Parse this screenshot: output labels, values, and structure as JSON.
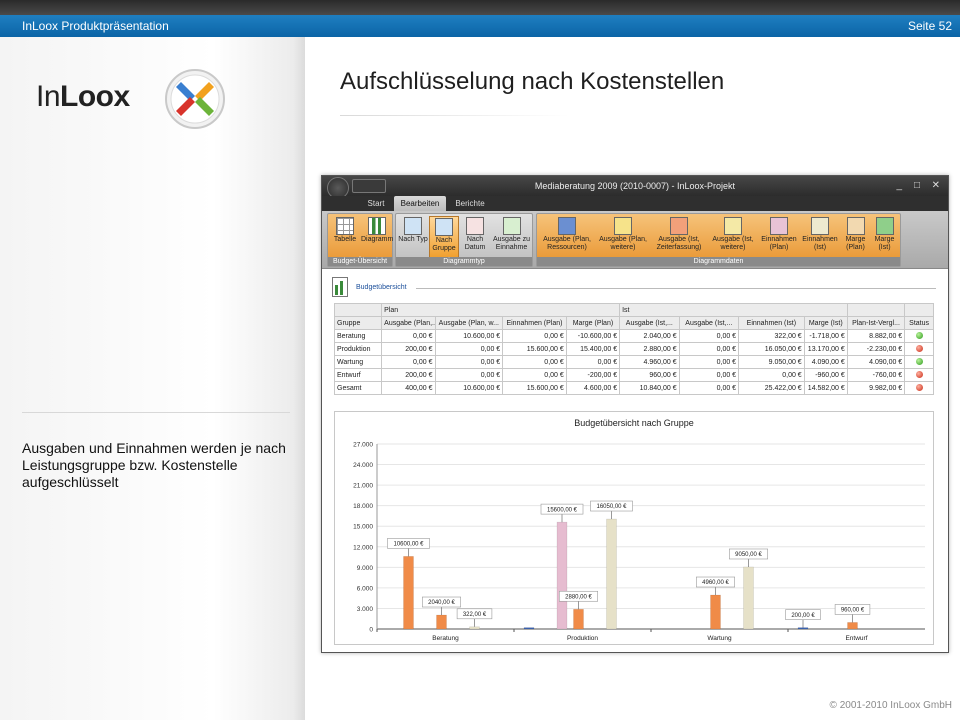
{
  "header": {
    "left": "InLoox Produktpräsentation",
    "right": "Seite 52"
  },
  "logo": {
    "text_light": "In",
    "text_bold": "Loox"
  },
  "slide_title": "Aufschlüsselung nach Kostenstellen",
  "description": "Ausgaben und Einnahmen werden je nach Leistungsgruppe bzw. Kostenstelle aufgeschlüsselt",
  "footer": "© 2001-2010 InLoox GmbH",
  "window": {
    "title": "Mediaberatung 2009 (2010-0007) - InLoox-Projekt",
    "controls": [
      "_",
      "□",
      "✕"
    ],
    "tabs": [
      "Start",
      "Bearbeiten",
      "Berichte"
    ],
    "active_tab": "Bearbeiten",
    "ribbon_groups": [
      {
        "label": "Budget-Übersicht",
        "buttons": [
          "Tabelle",
          "Diagramm"
        ]
      },
      {
        "label": "Diagrammtyp",
        "buttons": [
          "Nach Typ",
          "Nach Gruppe",
          "Nach Datum",
          "Ausgabe zu Einnahme"
        ]
      },
      {
        "label": "Diagrammdaten",
        "buttons": [
          "Ausgabe (Plan, Ressourcen)",
          "Ausgabe (Plan, weitere)",
          "Ausgabe (Ist, Zeiterfassung)",
          "Ausgabe (Ist, weitere)",
          "Einnahmen (Plan)",
          "Einnahmen (Ist)",
          "Marge (Plan)",
          "Marge (Ist)"
        ]
      }
    ],
    "selected_button": "Nach Gruppe",
    "section_title": "Budgetübersicht"
  },
  "table": {
    "group_headers": {
      "plan": "Plan",
      "ist": "Ist"
    },
    "columns": [
      "Gruppe",
      "Ausgabe (Plan,...",
      "Ausgabe (Plan, w...",
      "Einnahmen (Plan)",
      "Marge (Plan)",
      "Ausgabe (Ist,...",
      "Ausgabe (Ist,...",
      "Einnahmen (Ist)",
      "Marge (Ist)",
      "Plan-Ist-Vergl...",
      "Status"
    ],
    "rows": [
      {
        "cells": [
          "Beratung",
          "0,00 €",
          "10.600,00 €",
          "0,00 €",
          "-10.600,00 €",
          "2.040,00 €",
          "0,00 €",
          "322,00 €",
          "-1.718,00 €",
          "8.882,00 €"
        ],
        "status": "green"
      },
      {
        "cells": [
          "Produktion",
          "200,00 €",
          "0,00 €",
          "15.600,00 €",
          "15.400,00 €",
          "2.880,00 €",
          "0,00 €",
          "16.050,00 €",
          "13.170,00 €",
          "-2.230,00 €"
        ],
        "status": "red"
      },
      {
        "cells": [
          "Wartung",
          "0,00 €",
          "0,00 €",
          "0,00 €",
          "0,00 €",
          "4.960,00 €",
          "0,00 €",
          "9.050,00 €",
          "4.090,00 €",
          "4.090,00 €"
        ],
        "status": "green"
      },
      {
        "cells": [
          "Entwurf",
          "200,00 €",
          "0,00 €",
          "0,00 €",
          "-200,00 €",
          "960,00 €",
          "0,00 €",
          "0,00 €",
          "-960,00 €",
          "-760,00 €"
        ],
        "status": "red"
      },
      {
        "cells": [
          "Gesamt",
          "400,00 €",
          "10.600,00 €",
          "15.600,00 €",
          "4.600,00 €",
          "10.840,00 €",
          "0,00 €",
          "25.422,00 €",
          "14.582,00 €",
          "9.982,00 €"
        ],
        "status": "red"
      }
    ]
  },
  "chart_data": {
    "type": "bar",
    "title": "Budgetübersicht nach Gruppe",
    "categories": [
      "Beratung",
      "Produktion",
      "Wartung",
      "Entwurf"
    ],
    "ylim": [
      0,
      27000
    ],
    "yticks": [
      "0",
      "3.000",
      "6.000",
      "9.000",
      "12.000",
      "15.000",
      "18.000",
      "21.000",
      "24.000",
      "27.000"
    ],
    "ytick_values": [
      0,
      3000,
      6000,
      9000,
      12000,
      15000,
      18000,
      21000,
      24000,
      27000
    ],
    "series": [
      {
        "values": [
          0,
          200,
          0,
          200
        ],
        "color": "#3b64b4"
      },
      {
        "values": [
          10600,
          0,
          0,
          0
        ],
        "color": "#f08b48"
      },
      {
        "values": [
          0,
          15600,
          0,
          0
        ],
        "color": "#e6bcd0"
      },
      {
        "values": [
          2040,
          2880,
          4960,
          960
        ],
        "color": "#f08b48"
      },
      {
        "values": [
          0,
          0,
          0,
          0
        ],
        "color": "#f2cc7a"
      },
      {
        "values": [
          322,
          16050,
          9050,
          0
        ],
        "color": "#e6e1c8"
      }
    ],
    "data_labels": [
      {
        "category": "Beratung",
        "series": 1,
        "text": "10600,00 €"
      },
      {
        "category": "Beratung",
        "series": 3,
        "text": "2040,00 €"
      },
      {
        "category": "Beratung",
        "series": 5,
        "text": "322,00 €"
      },
      {
        "category": "Produktion",
        "series": 2,
        "text": "15600,00 €"
      },
      {
        "category": "Produktion",
        "series": 3,
        "text": "2880,00 €"
      },
      {
        "category": "Produktion",
        "series": 5,
        "text": "16050,00 €"
      },
      {
        "category": "Wartung",
        "series": 3,
        "text": "4960,00 €"
      },
      {
        "category": "Wartung",
        "series": 5,
        "text": "9050,00 €"
      },
      {
        "category": "Entwurf",
        "series": 0,
        "text": "200,00 €"
      },
      {
        "category": "Entwurf",
        "series": 3,
        "text": "960,00 €"
      }
    ]
  }
}
